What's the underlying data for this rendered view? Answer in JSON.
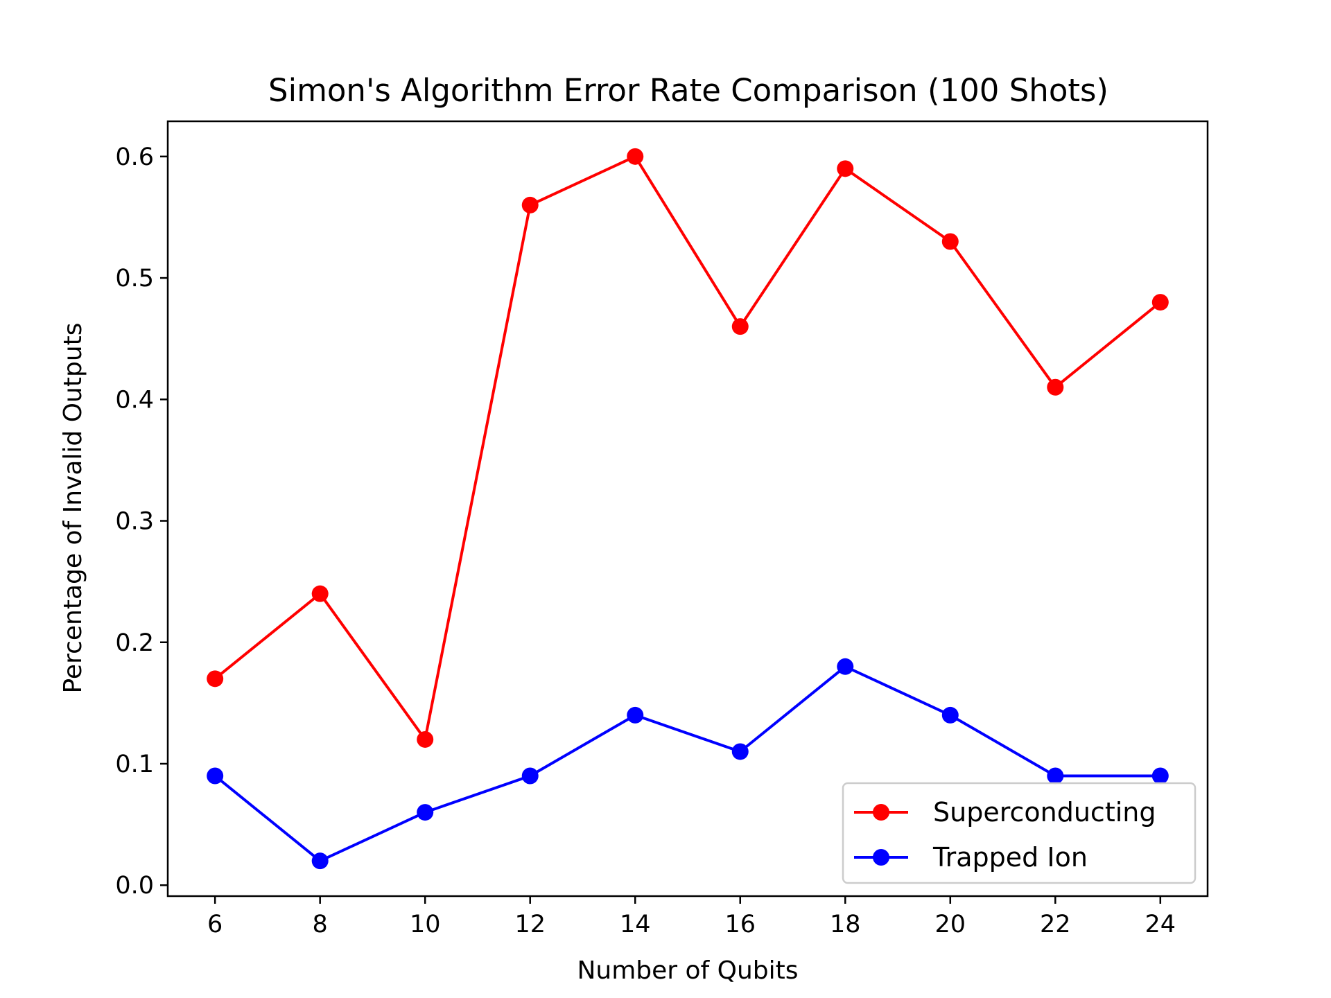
{
  "chart_data": {
    "type": "line",
    "title": "Simon's Algorithm Error Rate Comparison (100 Shots)",
    "xlabel": "Number of Qubits",
    "ylabel": "Percentage of Invalid Outputs",
    "x": [
      6,
      8,
      10,
      12,
      14,
      16,
      18,
      20,
      22,
      24
    ],
    "xlim": [
      5.1,
      24.9
    ],
    "ylim": [
      -0.009,
      0.629
    ],
    "xticks": [
      "6",
      "8",
      "10",
      "12",
      "14",
      "16",
      "18",
      "20",
      "22",
      "24"
    ],
    "yticks": [
      "0.0",
      "0.1",
      "0.2",
      "0.3",
      "0.4",
      "0.5",
      "0.6"
    ],
    "grid": false,
    "legend_position": "lower-right",
    "series": [
      {
        "name": "Superconducting",
        "color": "#ff0000",
        "marker": "circle",
        "values": [
          0.17,
          0.24,
          0.12,
          0.56,
          0.6,
          0.46,
          0.59,
          0.53,
          0.41,
          0.48
        ]
      },
      {
        "name": "Trapped Ion",
        "color": "#0000ff",
        "marker": "circle",
        "values": [
          0.09,
          0.02,
          0.06,
          0.09,
          0.14,
          0.11,
          0.18,
          0.14,
          0.09,
          0.09
        ]
      }
    ]
  }
}
